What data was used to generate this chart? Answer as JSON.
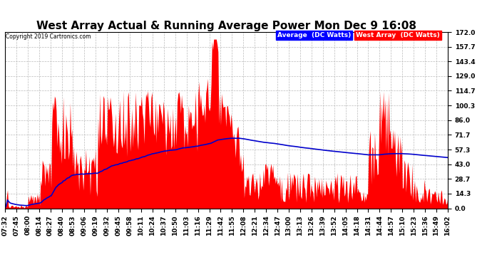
{
  "title": "West Array Actual & Running Average Power Mon Dec 9 16:08",
  "copyright": "Copyright 2019 Cartronics.com",
  "legend_blue": "Average  (DC Watts)",
  "legend_red": "West Array  (DC Watts)",
  "ymin": 0.0,
  "ymax": 172.0,
  "yticks": [
    0.0,
    14.3,
    28.7,
    43.0,
    57.3,
    71.7,
    86.0,
    100.3,
    114.7,
    129.0,
    143.4,
    157.7,
    172.0
  ],
  "xtick_labels": [
    "07:32",
    "07:45",
    "08:00",
    "08:14",
    "08:27",
    "08:40",
    "08:53",
    "09:06",
    "09:19",
    "09:32",
    "09:45",
    "09:58",
    "10:11",
    "10:24",
    "10:37",
    "10:50",
    "11:03",
    "11:16",
    "11:29",
    "11:42",
    "11:55",
    "12:08",
    "12:21",
    "12:34",
    "12:47",
    "13:00",
    "13:13",
    "13:26",
    "13:39",
    "13:52",
    "14:05",
    "14:18",
    "14:31",
    "14:44",
    "14:57",
    "15:10",
    "15:23",
    "15:36",
    "15:49",
    "16:02"
  ],
  "background_color": "#ffffff",
  "plot_bg_color": "#ffffff",
  "grid_color": "#bbbbbb",
  "area_color": "#ff0000",
  "line_color": "#0000cc",
  "title_fontsize": 11,
  "tick_fontsize": 6.5
}
